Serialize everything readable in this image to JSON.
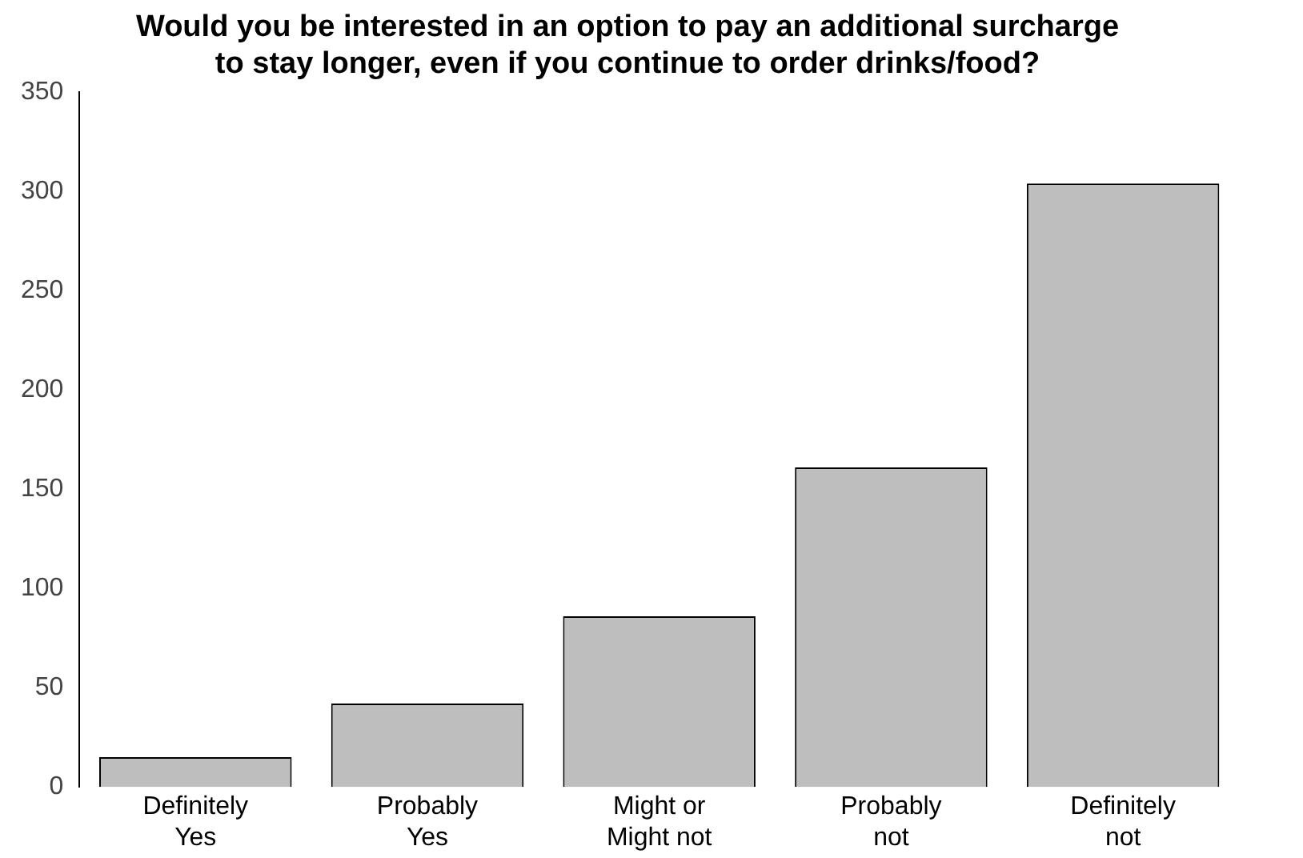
{
  "chart_data": {
    "type": "bar",
    "title": "Would you be interested in an option to pay an additional surcharge\nto stay longer, even if you continue to order drinks/food?",
    "categories": [
      "Definitely\nYes",
      "Probably\nYes",
      "Might or\nMight not",
      "Probably\nnot",
      "Definitely\nnot"
    ],
    "values": [
      15,
      42,
      86,
      161,
      304
    ],
    "color": "#bebebe",
    "ylim": [
      0,
      350
    ],
    "yticks": [
      0,
      50,
      100,
      150,
      200,
      250,
      300,
      350
    ],
    "grid": false,
    "legend": false
  }
}
